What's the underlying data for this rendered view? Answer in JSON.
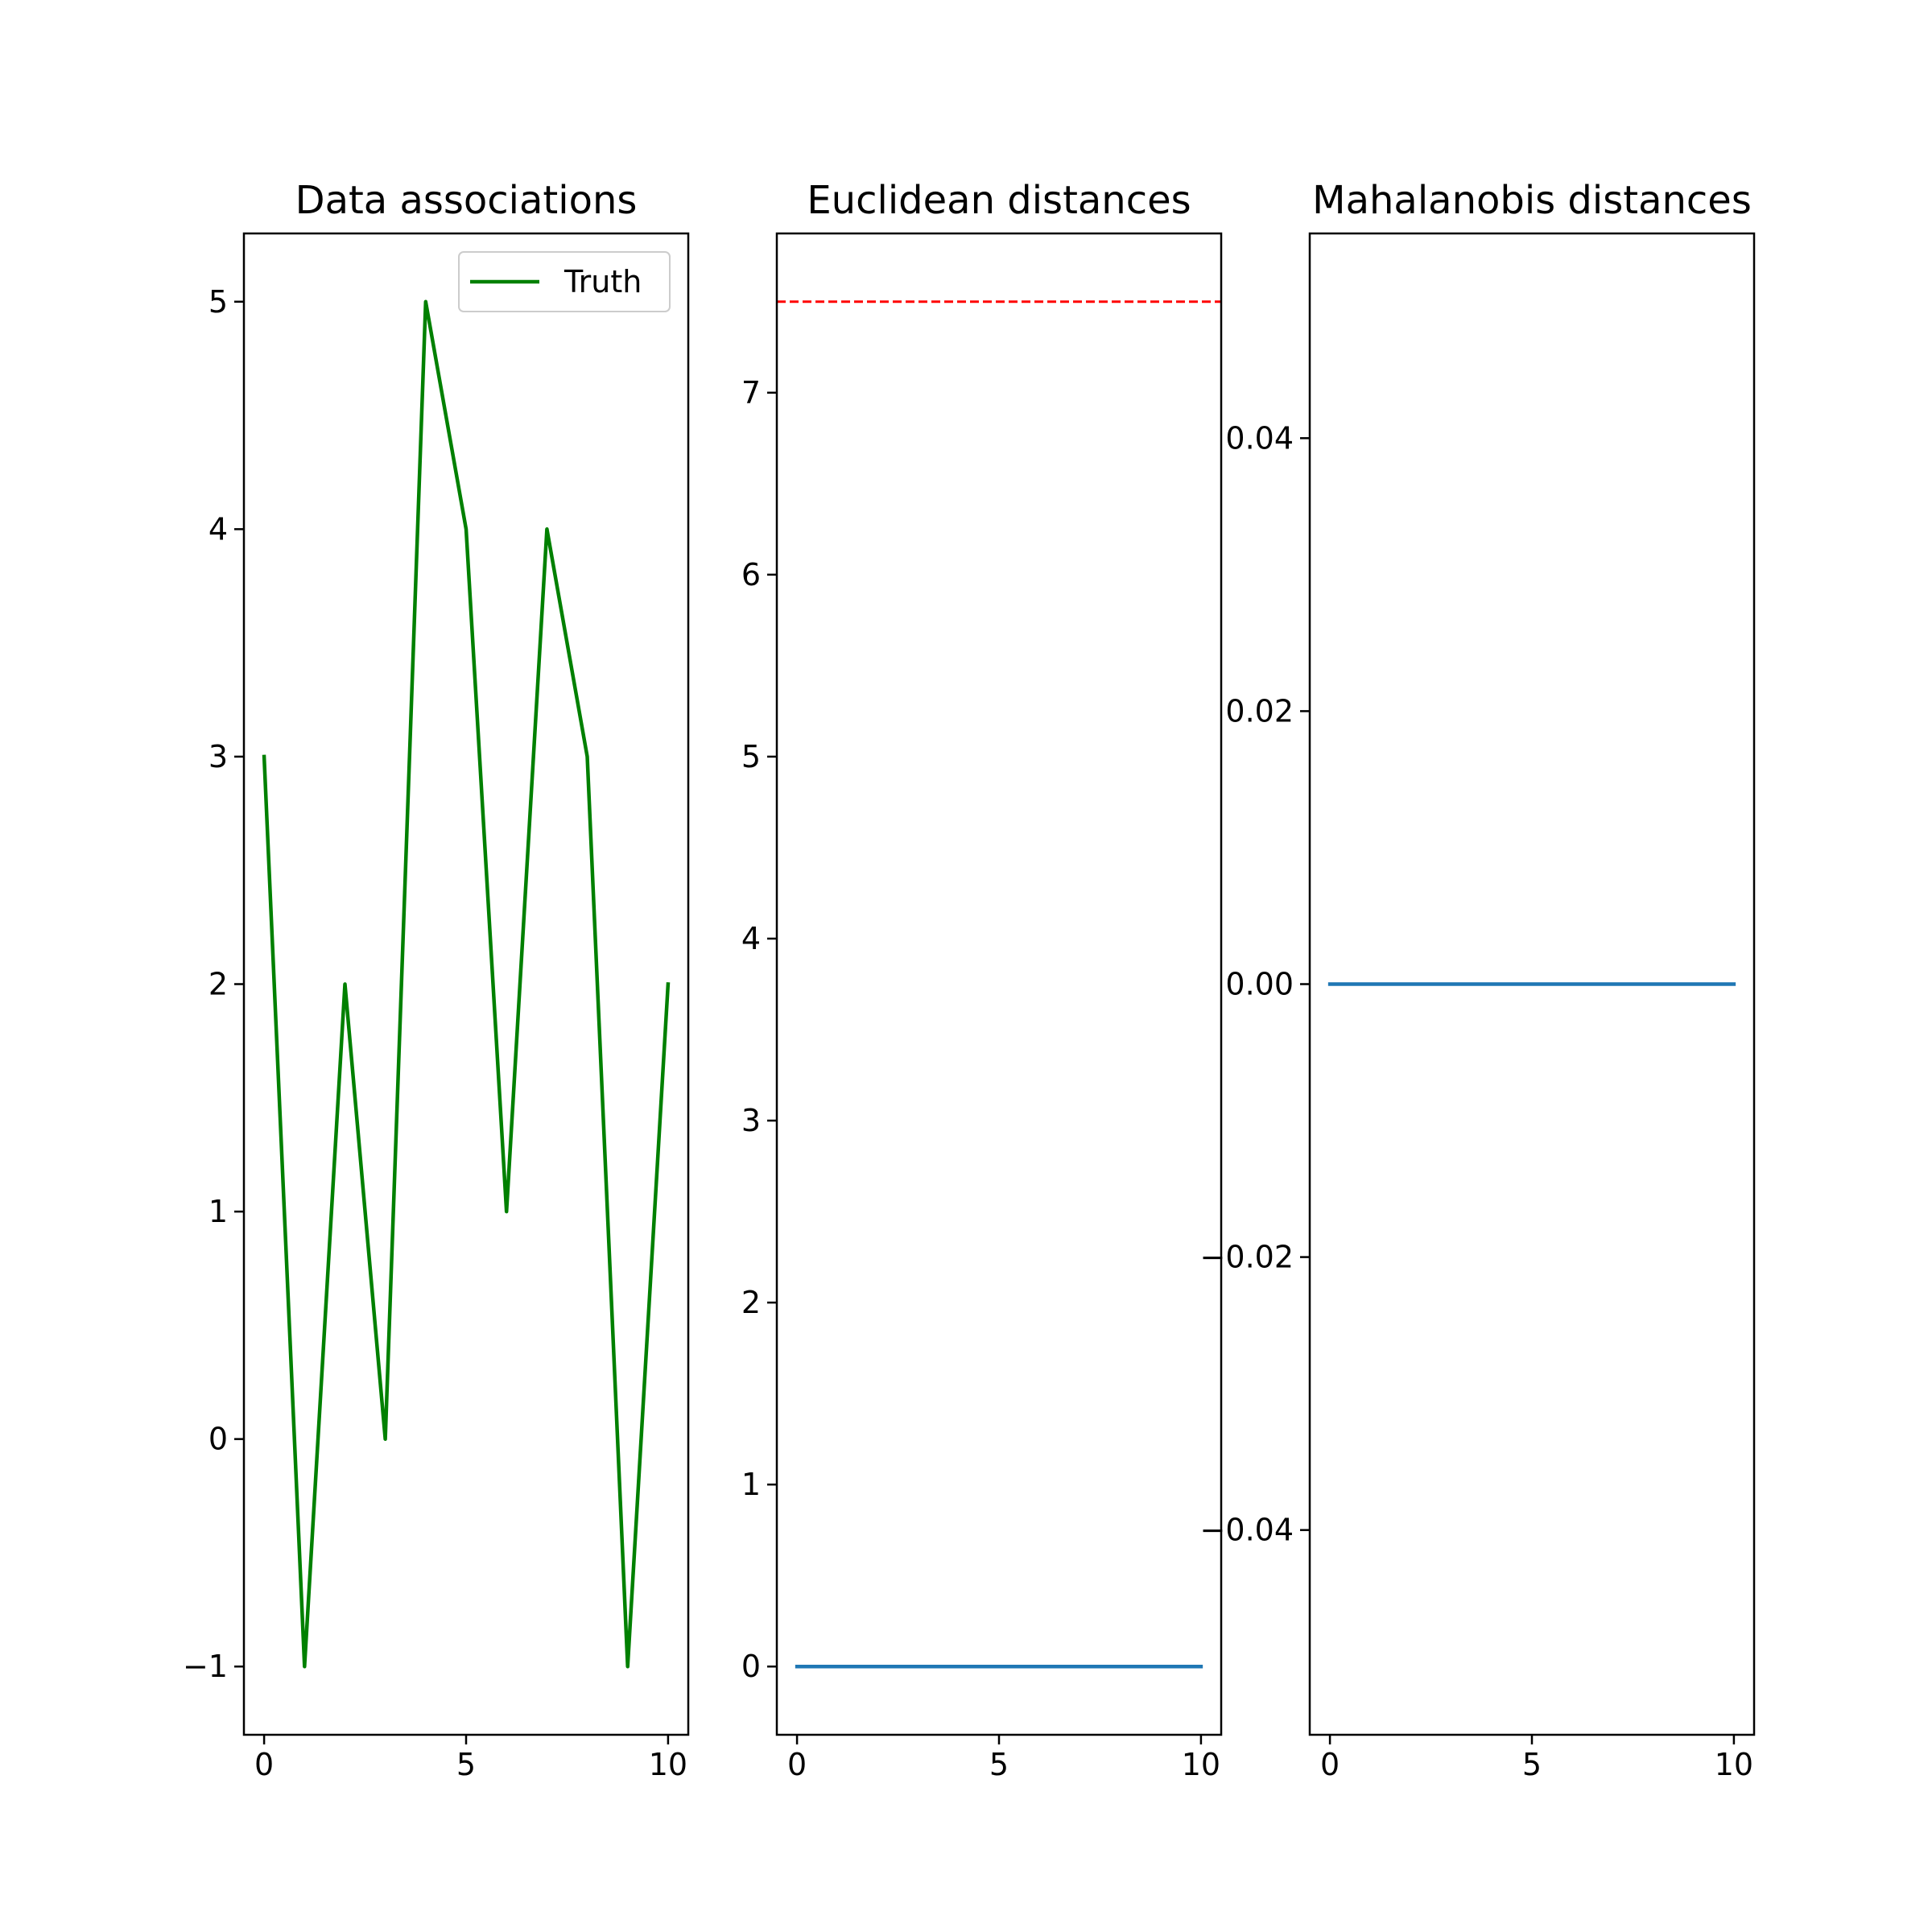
{
  "chart_data": [
    {
      "type": "line",
      "title": "Data associations",
      "xlabel": "",
      "ylabel": "",
      "xlim": [
        -0.5,
        10.5
      ],
      "ylim": [
        -1.3,
        5.3
      ],
      "xticks": [
        0,
        5,
        10
      ],
      "xtick_labels": [
        "0",
        "5",
        "10"
      ],
      "yticks": [
        -1,
        0,
        1,
        2,
        3,
        4,
        5
      ],
      "ytick_labels": [
        "−1",
        "0",
        "1",
        "2",
        "3",
        "4",
        "5"
      ],
      "grid": false,
      "legend": {
        "position": "upper right",
        "entries": [
          "Truth"
        ]
      },
      "series": [
        {
          "name": "Truth",
          "color": "#008000",
          "style": "solid",
          "x": [
            0,
            1,
            2,
            3,
            4,
            5,
            6,
            7,
            8,
            9,
            10
          ],
          "y": [
            3,
            -1,
            2,
            0,
            5,
            4,
            1,
            4,
            3,
            -1,
            2
          ]
        }
      ],
      "hlines": []
    },
    {
      "type": "line",
      "title": "Euclidean distances",
      "xlabel": "",
      "ylabel": "",
      "xlim": [
        -0.5,
        10.5
      ],
      "ylim": [
        -0.375,
        7.875
      ],
      "xticks": [
        0,
        5,
        10
      ],
      "xtick_labels": [
        "0",
        "5",
        "10"
      ],
      "yticks": [
        0,
        1,
        2,
        3,
        4,
        5,
        6,
        7
      ],
      "ytick_labels": [
        "0",
        "1",
        "2",
        "3",
        "4",
        "5",
        "6",
        "7"
      ],
      "grid": false,
      "legend": null,
      "series": [
        {
          "color": "#1f77b4",
          "style": "solid",
          "x": [
            0,
            1,
            2,
            3,
            4,
            5,
            6,
            7,
            8,
            9,
            10
          ],
          "y": [
            0,
            0,
            0,
            0,
            0,
            0,
            0,
            0,
            0,
            0,
            0
          ]
        }
      ],
      "hlines": [
        {
          "y": 7.5,
          "color": "#ff0000",
          "style": "dashed"
        }
      ]
    },
    {
      "type": "line",
      "title": "Mahalanobis distances",
      "xlabel": "",
      "ylabel": "",
      "xlim": [
        -0.5,
        10.5
      ],
      "ylim": [
        -0.055,
        0.055
      ],
      "xticks": [
        0,
        5,
        10
      ],
      "xtick_labels": [
        "0",
        "5",
        "10"
      ],
      "yticks": [
        -0.04,
        -0.02,
        0.0,
        0.02,
        0.04
      ],
      "ytick_labels": [
        "−0.04",
        "−0.02",
        "0.00",
        "0.02",
        "0.04"
      ],
      "grid": false,
      "legend": null,
      "series": [
        {
          "color": "#1f77b4",
          "style": "solid",
          "x": [
            0,
            1,
            2,
            3,
            4,
            5,
            6,
            7,
            8,
            9,
            10
          ],
          "y": [
            0,
            0,
            0,
            0,
            0,
            0,
            0,
            0,
            0,
            0,
            0
          ]
        }
      ],
      "hlines": []
    }
  ]
}
